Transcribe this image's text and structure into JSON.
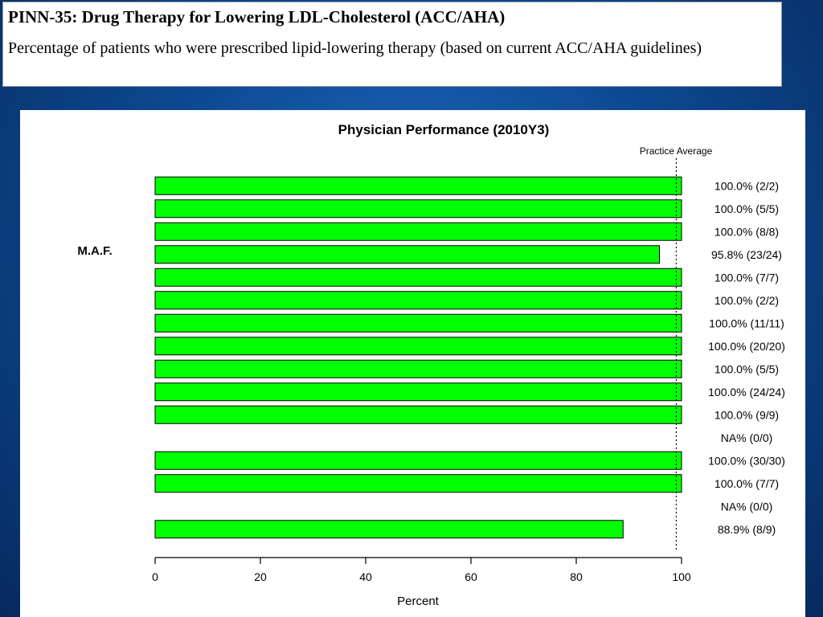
{
  "header": {
    "title": "PINN-35: Drug Therapy for Lowering LDL-Cholesterol (ACC/AHA)",
    "subtitle": "Percentage of patients who were prescribed lipid-lowering therapy (based on current ACC/AHA guidelines)"
  },
  "colors": {
    "bar_fill": "#00ff00",
    "bar_stroke": "#000000",
    "slide_background": "#0d4a94"
  },
  "chart_data": {
    "type": "bar",
    "orientation": "horizontal",
    "title": "Physician Performance (2010Y3)",
    "xlabel": "Percent",
    "ylabel": "",
    "xlim": [
      0,
      100
    ],
    "xticks": [
      "0",
      "20",
      "40",
      "60",
      "80",
      "100"
    ],
    "reference_line": {
      "label": "Practice Average",
      "value": 99
    },
    "highlighted_physician": {
      "label": "M.A.F.",
      "row": 3
    },
    "bars": [
      {
        "value": 100,
        "label": "100.0% (2/2)"
      },
      {
        "value": 100,
        "label": "100.0% (5/5)"
      },
      {
        "value": 100,
        "label": "100.0% (8/8)"
      },
      {
        "value": 95.8,
        "label": "95.8% (23/24)"
      },
      {
        "value": 100,
        "label": "100.0% (7/7)"
      },
      {
        "value": 100,
        "label": "100.0% (2/2)"
      },
      {
        "value": 100,
        "label": "100.0% (11/11)"
      },
      {
        "value": 100,
        "label": "100.0% (20/20)"
      },
      {
        "value": 100,
        "label": "100.0% (5/5)"
      },
      {
        "value": 100,
        "label": "100.0% (24/24)"
      },
      {
        "value": 100,
        "label": "100.0% (9/9)"
      },
      {
        "value": null,
        "label": "NA% (0/0)"
      },
      {
        "value": 100,
        "label": "100.0% (30/30)"
      },
      {
        "value": 100,
        "label": "100.0% (7/7)"
      },
      {
        "value": null,
        "label": "NA% (0/0)"
      },
      {
        "value": 88.9,
        "label": "88.9% (8/9)"
      }
    ]
  }
}
